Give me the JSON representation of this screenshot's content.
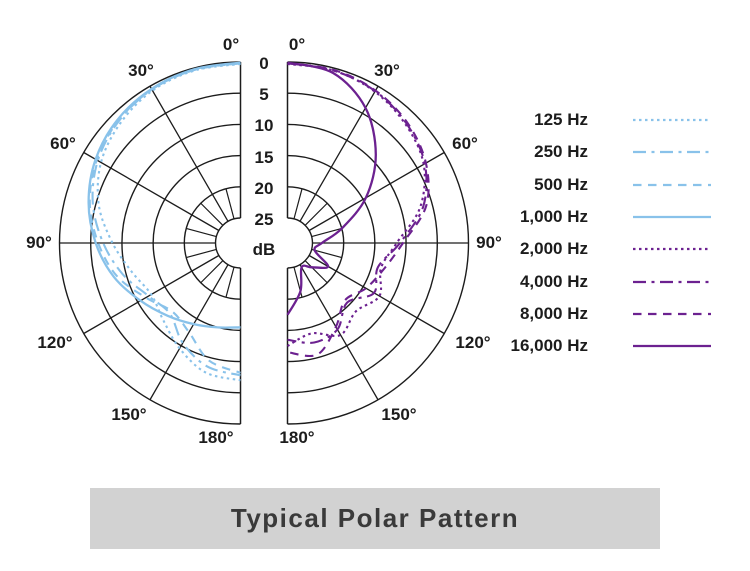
{
  "title_bar": {
    "text": "Typical Polar Pattern"
  },
  "colors": {
    "grid": "#1c1c1c",
    "low_freq_blue": "#89c2ea",
    "high_freq_purple": "#6c2190",
    "title_box_bg": "#d2d2d2",
    "title_text": "#3a3a3a"
  },
  "chart_data": {
    "type": "line",
    "subtype": "polar-half-diagrams",
    "title": "Typical Polar Pattern",
    "radial_axis": {
      "unit_label": "dB",
      "tick_labels": [
        "0",
        "5",
        "10",
        "15",
        "20",
        "25"
      ],
      "tick_values_db": [
        0,
        5,
        10,
        15,
        20,
        25
      ],
      "direction": "attenuation increases toward center"
    },
    "angle_axis": {
      "left_labels": [
        "0°",
        "30°",
        "60°",
        "90°",
        "120°",
        "150°",
        "180°"
      ],
      "right_labels": [
        "0°",
        "30°",
        "60°",
        "90°",
        "120°",
        "150°",
        "180°"
      ],
      "grid_step_deg": 30,
      "inner_tick_step_deg": 15
    },
    "angles_deg": [
      0,
      15,
      30,
      45,
      60,
      75,
      90,
      105,
      120,
      135,
      150,
      165,
      180
    ],
    "series": [
      {
        "name": "125 Hz",
        "side": "left",
        "style": "dotted",
        "color": "#89c2ea",
        "attenuation_db": [
          0.3,
          0.4,
          0.8,
          1.8,
          3.2,
          5.5,
          8.5,
          11,
          12.5,
          11.5,
          9.5,
          7.5,
          7.0
        ]
      },
      {
        "name": "250 Hz",
        "side": "left",
        "style": "dashdot",
        "color": "#89c2ea",
        "attenuation_db": [
          0.2,
          0.3,
          0.6,
          1.4,
          2.6,
          4.5,
          7.0,
          9.5,
          12.0,
          13.0,
          10.5,
          8.5,
          7.8
        ]
      },
      {
        "name": "500 Hz",
        "side": "left",
        "style": "dashed",
        "color": "#89c2ea",
        "attenuation_db": [
          0.2,
          0.3,
          0.6,
          1.3,
          2.4,
          4.0,
          6.2,
          8.5,
          11.5,
          13.5,
          12.5,
          9.5,
          8.2
        ]
      },
      {
        "name": "1,000 Hz",
        "side": "left",
        "style": "solid",
        "color": "#89c2ea",
        "attenuation_db": [
          0.1,
          0.2,
          0.5,
          1.1,
          2.2,
          3.8,
          5.8,
          8.0,
          10.5,
          12.5,
          14.0,
          15.0,
          15.5
        ]
      },
      {
        "name": "2,000 Hz",
        "side": "right",
        "style": "dotted",
        "color": "#6c2190",
        "attenuation_db": [
          0.3,
          0.4,
          1.0,
          2.2,
          3.8,
          7.0,
          11.5,
          13.5,
          12.0,
          13.5,
          12.0,
          14.0,
          12.5
        ]
      },
      {
        "name": "4,000 Hz",
        "side": "right",
        "style": "dashdot",
        "color": "#6c2190",
        "attenuation_db": [
          0.2,
          0.4,
          0.9,
          2.0,
          3.6,
          6.5,
          11.0,
          14.0,
          13.0,
          15.5,
          13.0,
          12.5,
          13.5
        ]
      },
      {
        "name": "8,000 Hz",
        "side": "right",
        "style": "dashed",
        "color": "#6c2190",
        "attenuation_db": [
          0.2,
          0.3,
          0.8,
          1.8,
          3.4,
          6.0,
          10.5,
          13.0,
          14.5,
          16.0,
          13.5,
          10.5,
          11.5
        ]
      },
      {
        "name": "16,000 Hz",
        "side": "right",
        "style": "solid",
        "color": "#6c2190",
        "attenuation_db": [
          0.1,
          0.8,
          4.0,
          9.0,
          14.5,
          20.0,
          23.5,
          24.5,
          21.5,
          23.5,
          24.5,
          21.0,
          17.5
        ]
      }
    ],
    "legend": {
      "position": "right",
      "items": [
        {
          "label": "125 Hz",
          "style": "dotted",
          "color": "#89c2ea"
        },
        {
          "label": "250 Hz",
          "style": "dashdot",
          "color": "#89c2ea"
        },
        {
          "label": "500 Hz",
          "style": "dashed",
          "color": "#89c2ea"
        },
        {
          "label": "1,000 Hz",
          "style": "solid",
          "color": "#89c2ea"
        },
        {
          "label": "2,000 Hz",
          "style": "dotted",
          "color": "#6c2190"
        },
        {
          "label": "4,000 Hz",
          "style": "dashdot",
          "color": "#6c2190"
        },
        {
          "label": "8,000 Hz",
          "style": "dashed",
          "color": "#6c2190"
        },
        {
          "label": "16,000 Hz",
          "style": "solid",
          "color": "#6c2190"
        }
      ]
    }
  }
}
